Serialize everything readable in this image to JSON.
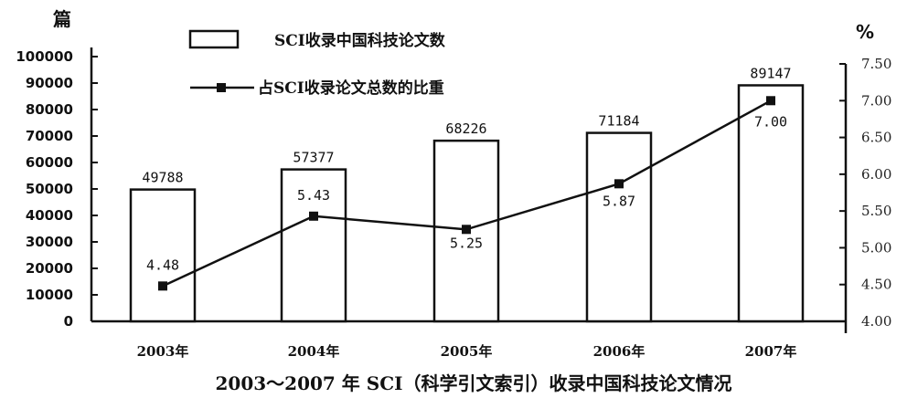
{
  "chart_data": {
    "type": "bar",
    "title": "2003～2007 年 SCI（科学引文索引）收录中国科技论文情况",
    "categories": [
      "2003年",
      "2004年",
      "2005年",
      "2006年",
      "2007年"
    ],
    "y_left_unit": "篇",
    "y_right_unit": "%",
    "y_left_ticks": [
      "0",
      "10000",
      "20000",
      "30000",
      "40000",
      "50000",
      "60000",
      "70000",
      "80000",
      "90000",
      "100000"
    ],
    "y_right_ticks": [
      "4.00",
      "4.50",
      "5.00",
      "5.50",
      "6.00",
      "6.50",
      "7.00",
      "7.50"
    ],
    "ylim_left": [
      0,
      100000
    ],
    "ylim_right": [
      4.0,
      7.5
    ],
    "series": [
      {
        "name": "SCI收录中国科技论文数",
        "type": "bar",
        "axis": "left",
        "values": [
          49788,
          57377,
          68226,
          71184,
          89147
        ],
        "labels": [
          "49788",
          "57377",
          "68226",
          "71184",
          "89147"
        ]
      },
      {
        "name": "占SCI收录论文总数的比重",
        "type": "line",
        "axis": "right",
        "values": [
          4.48,
          5.43,
          5.25,
          5.87,
          7.0
        ],
        "labels": [
          "4.48",
          "5.43",
          "5.25",
          "5.87",
          "7.00"
        ]
      }
    ],
    "legend_position": "top-center",
    "grid": false
  }
}
